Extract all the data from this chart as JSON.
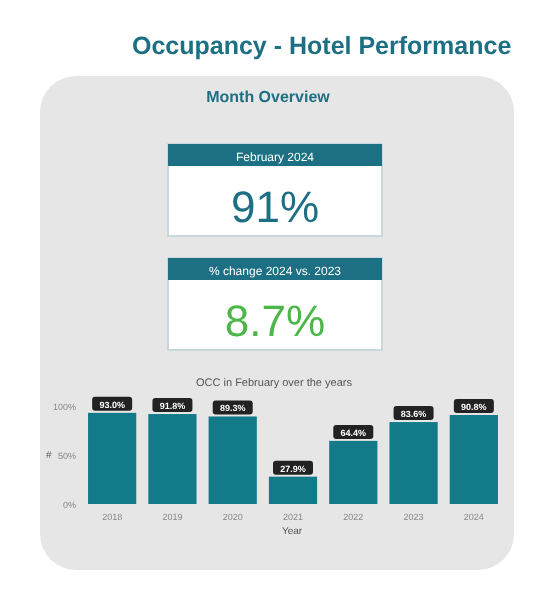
{
  "chart_data": {
    "type": "bar",
    "title": "Occupancy - Hotel Performance",
    "subtitle": "Month Overview",
    "annotations": [
      "February 2024",
      "91%",
      "% change 2024 vs. 2023",
      "8.7%",
      "OCC in February over the years"
    ],
    "categories": [
      "2018",
      "2019",
      "2020",
      "2021",
      "2022",
      "2023",
      "2024"
    ],
    "values": [
      93.0,
      91.8,
      89.3,
      27.9,
      64.4,
      83.6,
      90.8
    ],
    "value_labels": [
      "93.0%",
      "91.8%",
      "89.3%",
      "27.9%",
      "64.4%",
      "83.6%",
      "90.8%"
    ],
    "color": "#137a8a",
    "xlabel": "Year",
    "ylabel": "#",
    "ylim": [
      0,
      100
    ],
    "yticks": [
      {
        "value": 0,
        "label": "0%"
      },
      {
        "value": 50,
        "label": "50%"
      },
      {
        "value": 100,
        "label": "100%"
      }
    ],
    "grid": false
  }
}
